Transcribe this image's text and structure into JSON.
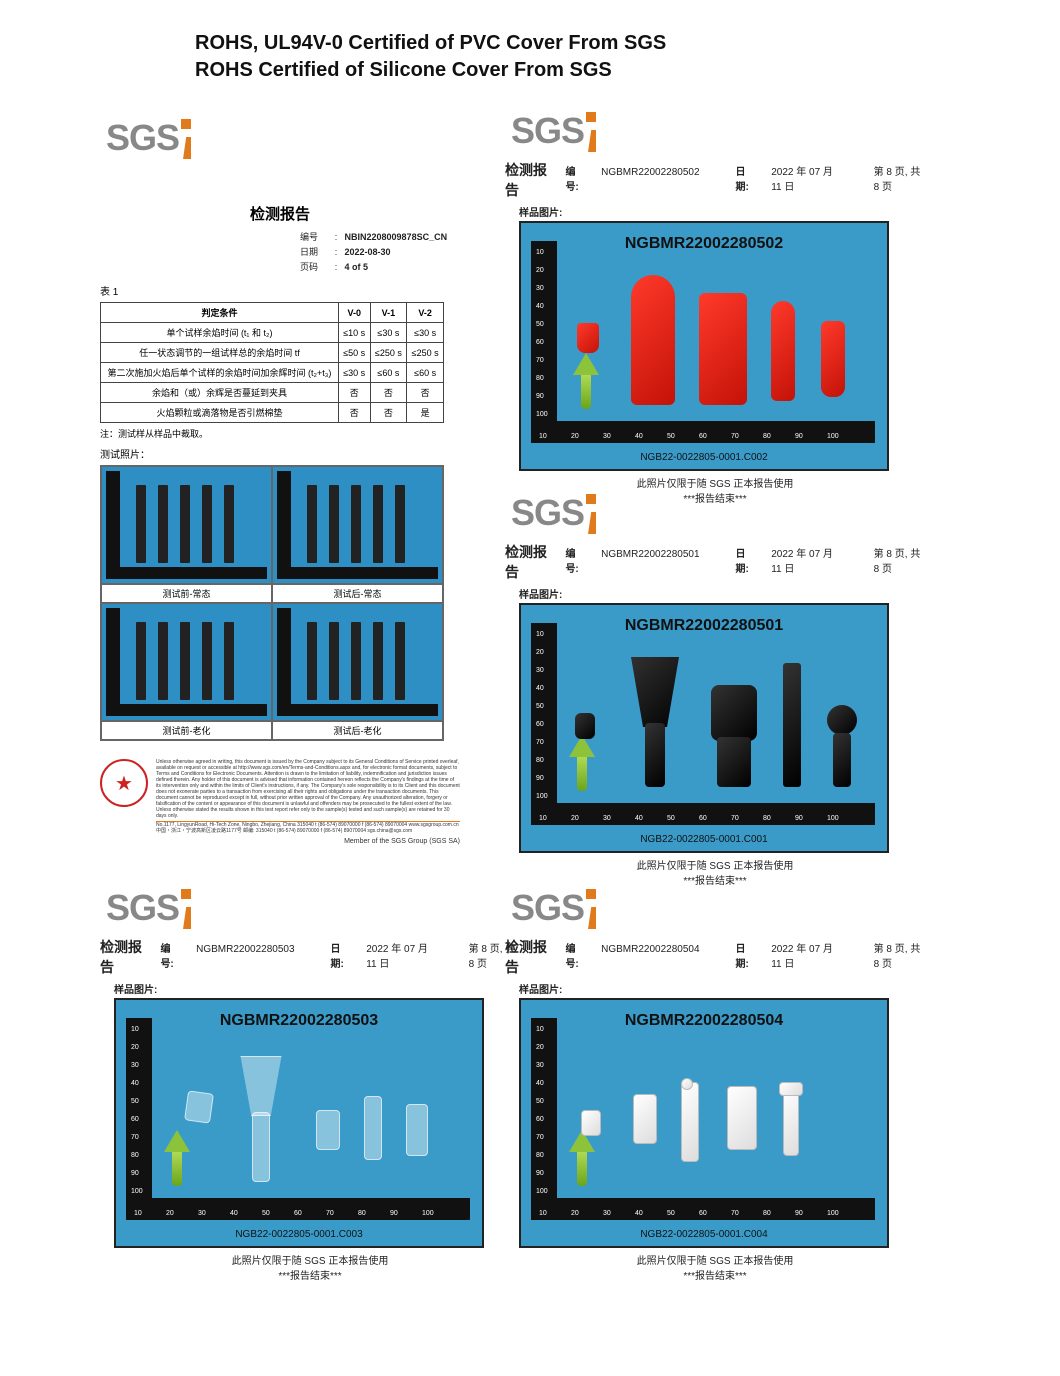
{
  "title": {
    "line1": "ROHS, UL94V-0 Certified of PVC Cover From SGS",
    "line2": "ROHS Certified of Silicone Cover From SGS"
  },
  "sgs_label": "SGS",
  "colors": {
    "accent_orange": "#e07a1a",
    "photo_bg": "#3a9bc9",
    "ruler": "#111111",
    "arrow_top": "#8cc33a",
    "series_red": "#e31b0c",
    "series_black": "#111111",
    "series_white": "#ffffff",
    "series_clear": "rgba(255,255,255,0.4)"
  },
  "top_left": {
    "report_title": "检测报告",
    "meta": {
      "num_k": "编号",
      "num_v": "NBIN2208009878SC_CN",
      "date_k": "日期",
      "date_v": "2022-08-30",
      "page_k": "页码",
      "page_v": "4 of 5"
    },
    "table_label": "表 1",
    "columns": [
      "判定条件",
      "V-0",
      "V-1",
      "V-2"
    ],
    "rows": [
      [
        "单个试样余焰时间 (t₁ 和 t₂)",
        "≤10 s",
        "≤30 s",
        "≤30 s"
      ],
      [
        "任一状态调节的一组试样总的余焰时间 tf",
        "≤50 s",
        "≤250 s",
        "≤250 s"
      ],
      [
        "第二次施加火焰后单个试样的余焰时间加余辉时间 (t₂+t₃)",
        "≤30 s",
        "≤60 s",
        "≤60 s"
      ],
      [
        "余焰和（或）余辉是否蔓延到夹具",
        "否",
        "否",
        "否"
      ],
      [
        "火焰颗粒或滴落物是否引燃棉垫",
        "否",
        "否",
        "是"
      ]
    ],
    "note": "注：测试样从样品中裁取。",
    "photos_title": "测试照片：",
    "captions": [
      "测试前-常态",
      "测试后-常态",
      "测试前-老化",
      "测试后-老化"
    ],
    "bottom_text": "Unless otherwise agreed in writing, this document is issued by the Company subject to its General Conditions of Service printed overleaf, available on request or accessible at http://www.sgs.com/en/Terms-and-Conditions.aspx and, for electronic format documents, subject to Terms and Conditions for Electronic Documents. Attention is drawn to the limitation of liability, indemnification and jurisdiction issues defined therein. Any holder of this document is advised that information contained hereon reflects the Company's findings at the time of its intervention only and within the limits of Client's instructions, if any. The Company's sole responsibility is to its Client and this document does not exonerate parties to a transaction from exercising all their rights and obligations under the transaction documents. This document cannot be reproduced except in full, without prior written approval of the Company. Any unauthorized alteration, forgery or falsification of the content or appearance of this document is unlawful and offenders may be prosecuted to the fullest extent of the law. Unless otherwise stated the results shown in this test report refer only to the sample(s) tested and such sample(s) are retained for 30 days only.",
    "addr": "No.1177, LingyunRoad, Hi-Tech Zone, Ningbo, Zhejiang, China 315040  t (86-574) 89070000  f (86-574) 89070004  www.sgsgroup.com.cn  中国・浙江・宁波高新区凌云路1177号  邮编: 315040  t (86-574) 89070000  f (86-574) 89070004  sgs.china@sgs.com",
    "member": "Member of the SGS Group (SGS SA)"
  },
  "top_right": {
    "report_title": "检测报告",
    "num_k": "编号:",
    "num_v": "NGBMR22002280502",
    "date_k": "日期:",
    "date_v": "2022 年 07 月 11 日",
    "page": "第 8 页, 共 8 页",
    "sample_label": "样品图片:",
    "photo_id": "NGBMR22002280502",
    "photo_ref": "NGB22-0022805-0001.C002",
    "caption1": "此照片仅限于随 SGS 正本报告使用",
    "caption2": "***报告结束***"
  },
  "mid_right": {
    "report_title": "检测报告",
    "num_k": "编号:",
    "num_v": "NGBMR22002280501",
    "date_k": "日期:",
    "date_v": "2022 年 07 月 11 日",
    "page": "第 8 页, 共 8 页",
    "sample_label": "样品图片:",
    "photo_id": "NGBMR22002280501",
    "photo_ref": "NGB22-0022805-0001.C001",
    "caption1": "此照片仅限于随 SGS 正本报告使用",
    "caption2": "***报告结束***"
  },
  "bot_left": {
    "report_title": "检测报告",
    "num_k": "编号:",
    "num_v": "NGBMR22002280503",
    "date_k": "日期:",
    "date_v": "2022 年 07 月 11 日",
    "page": "第 8 页, 共 8 页",
    "sample_label": "样品图片:",
    "photo_id": "NGBMR22002280503",
    "photo_ref": "NGB22-0022805-0001.C003",
    "caption1": "此照片仅限于随 SGS 正本报告使用",
    "caption2": "***报告结束***"
  },
  "bot_right": {
    "report_title": "检测报告",
    "num_k": "编号:",
    "num_v": "NGBMR22002280504",
    "date_k": "日期:",
    "date_v": "2022 年 07 月 11 日",
    "page": "第 8 页, 共 8 页",
    "sample_label": "样品图片:",
    "photo_id": "NGBMR22002280504",
    "photo_ref": "NGB22-0022805-0001.C004",
    "caption1": "此照片仅限于随 SGS 正本报告使用",
    "caption2": "***报告结束***"
  },
  "ruler_marks": [
    "10",
    "20",
    "30",
    "40",
    "50",
    "60",
    "70",
    "80",
    "90",
    "100"
  ]
}
